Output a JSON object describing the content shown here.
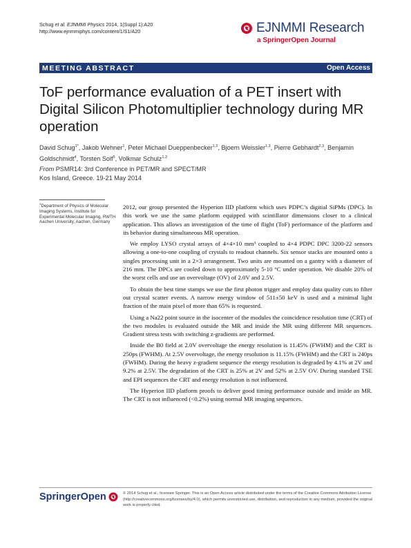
{
  "citation": {
    "journal_line_prefix": "Schug ",
    "journal_line_et_al": "et al.",
    "journal_line_name": " EJNMMI Physics",
    "journal_line_suffix": " 2014, 1(Suppl 1):A20",
    "url": "http://www.ejnmmiphys.com/content/1/S1/A20"
  },
  "logo": {
    "name": "EJNMMI Research",
    "tagline": "a SpringerOpen Journal",
    "icon": "springer-horse-icon",
    "brand_color": "#1f3b78",
    "accent_color": "#c8102e"
  },
  "banner": {
    "left_label": "MEETING ABSTRACT",
    "right_label": "Open Access"
  },
  "title": "ToF performance evaluation of a PET insert with Digital Silicon Photomultiplier technology during MR operation",
  "authors": [
    {
      "name": "David Schug",
      "sup": "1*"
    },
    {
      "name": "Jakob Wehner",
      "sup": "1"
    },
    {
      "name": "Peter Michael Dueppenbecker",
      "sup": "1,2"
    },
    {
      "name": "Bjoern Weissler",
      "sup": "1,3"
    },
    {
      "name": "Pierre Gebhardt",
      "sup": "2,3"
    },
    {
      "name": "Benjamin Goldschmidt",
      "sup": "4"
    },
    {
      "name": "Torsten Solf",
      "sup": "5"
    },
    {
      "name": "Volkmar Schulz",
      "sup": "1,3"
    }
  ],
  "conference": {
    "from_label": "From",
    "name": " PSMR14: 3rd Conference in PET/MR and SPECT/MR",
    "location": "Kos Island, Greece. 19-21 May 2014"
  },
  "affiliation": {
    "sup": "1",
    "text": "Department of Physics of Molecular Imaging Systems, Institute for Experimental Molecular Imaging, RWTH Aachen University, Aachen, Germany"
  },
  "body_paragraphs": [
    "2012, our group presented the Hyperion IID platform which uses PDPC’s digitial SiPMs (DPC). In this work we use the same platform equipped with scintillator dimensions closer to a clinical application. This allows an investigation of the time of flight (ToF) performance of the platform and its behavior during simultaneous MR operation.",
    "We employ LYSO crystal arrays of 4×4×10 mm³ coupled to 4×4 PDPC DPC 3200-22 sensors allowing a one-to-one coupling of crystals to readout channels. Six sensor stacks are mounted onto a singles processing unit in a 2×3 arrangement. Two units are mounted on a gantry with a diameter of 216 mm. The DPCs are cooled down to approximately 5-10 °C under operation. We disable 20% of the worst cells and use an overvoltage (OV) of 2.0V and 2.5V.",
    "To obtain the best time stamps we use the first photon trigger and employ data quality cuts to filter out crystal scatter events. A narrow energy window of 511±50 keV is used and a minimal light fraction of the main pixel of more than 65% is requested.",
    "Using a Na22 point source in the isocenter of the modules the coincidence resolution time (CRT) of the two modules is evaluated outside the MR and inside the MR using different MR sequences. Gradient stress tests with switching z-gradients are performed.",
    "Inside the B0 field at 2.0V overvoltage the energy resolution is 11.45% (FWHM) and the CRT is 250ps (FWHM). At 2.5V overvoltage, the energy resolution is 11.15% (FWHM) and the CRT is 240ps (FWHM). During the heavy z-gradient sequence the energy resolution is degraded by 4.1% at 2V and 9.2% at 2.5V. The degradation of the CRT is 25% at 2V and 52% at 2.5V OV. During standard TSE and EPI sequences the CRT and energy resolution is not influenced.",
    "The Hyperion IID platform proofs to deliver good timing performance outside and inside an MR. The CRT is not influenced (<0.2%) using normal MR imaging sequences."
  ],
  "footer": {
    "publisher_logo": "SpringerOpen",
    "copyright": "© 2014 Schug et al.; licensee Springer. This is an Open Access article distributed under the terms of the Creative Commons Attribution License (http://creativecommons.org/licenses/by/4.0), which permits unrestricted use, distribution, and reproduction in any medium, provided the original work is properly cited."
  }
}
